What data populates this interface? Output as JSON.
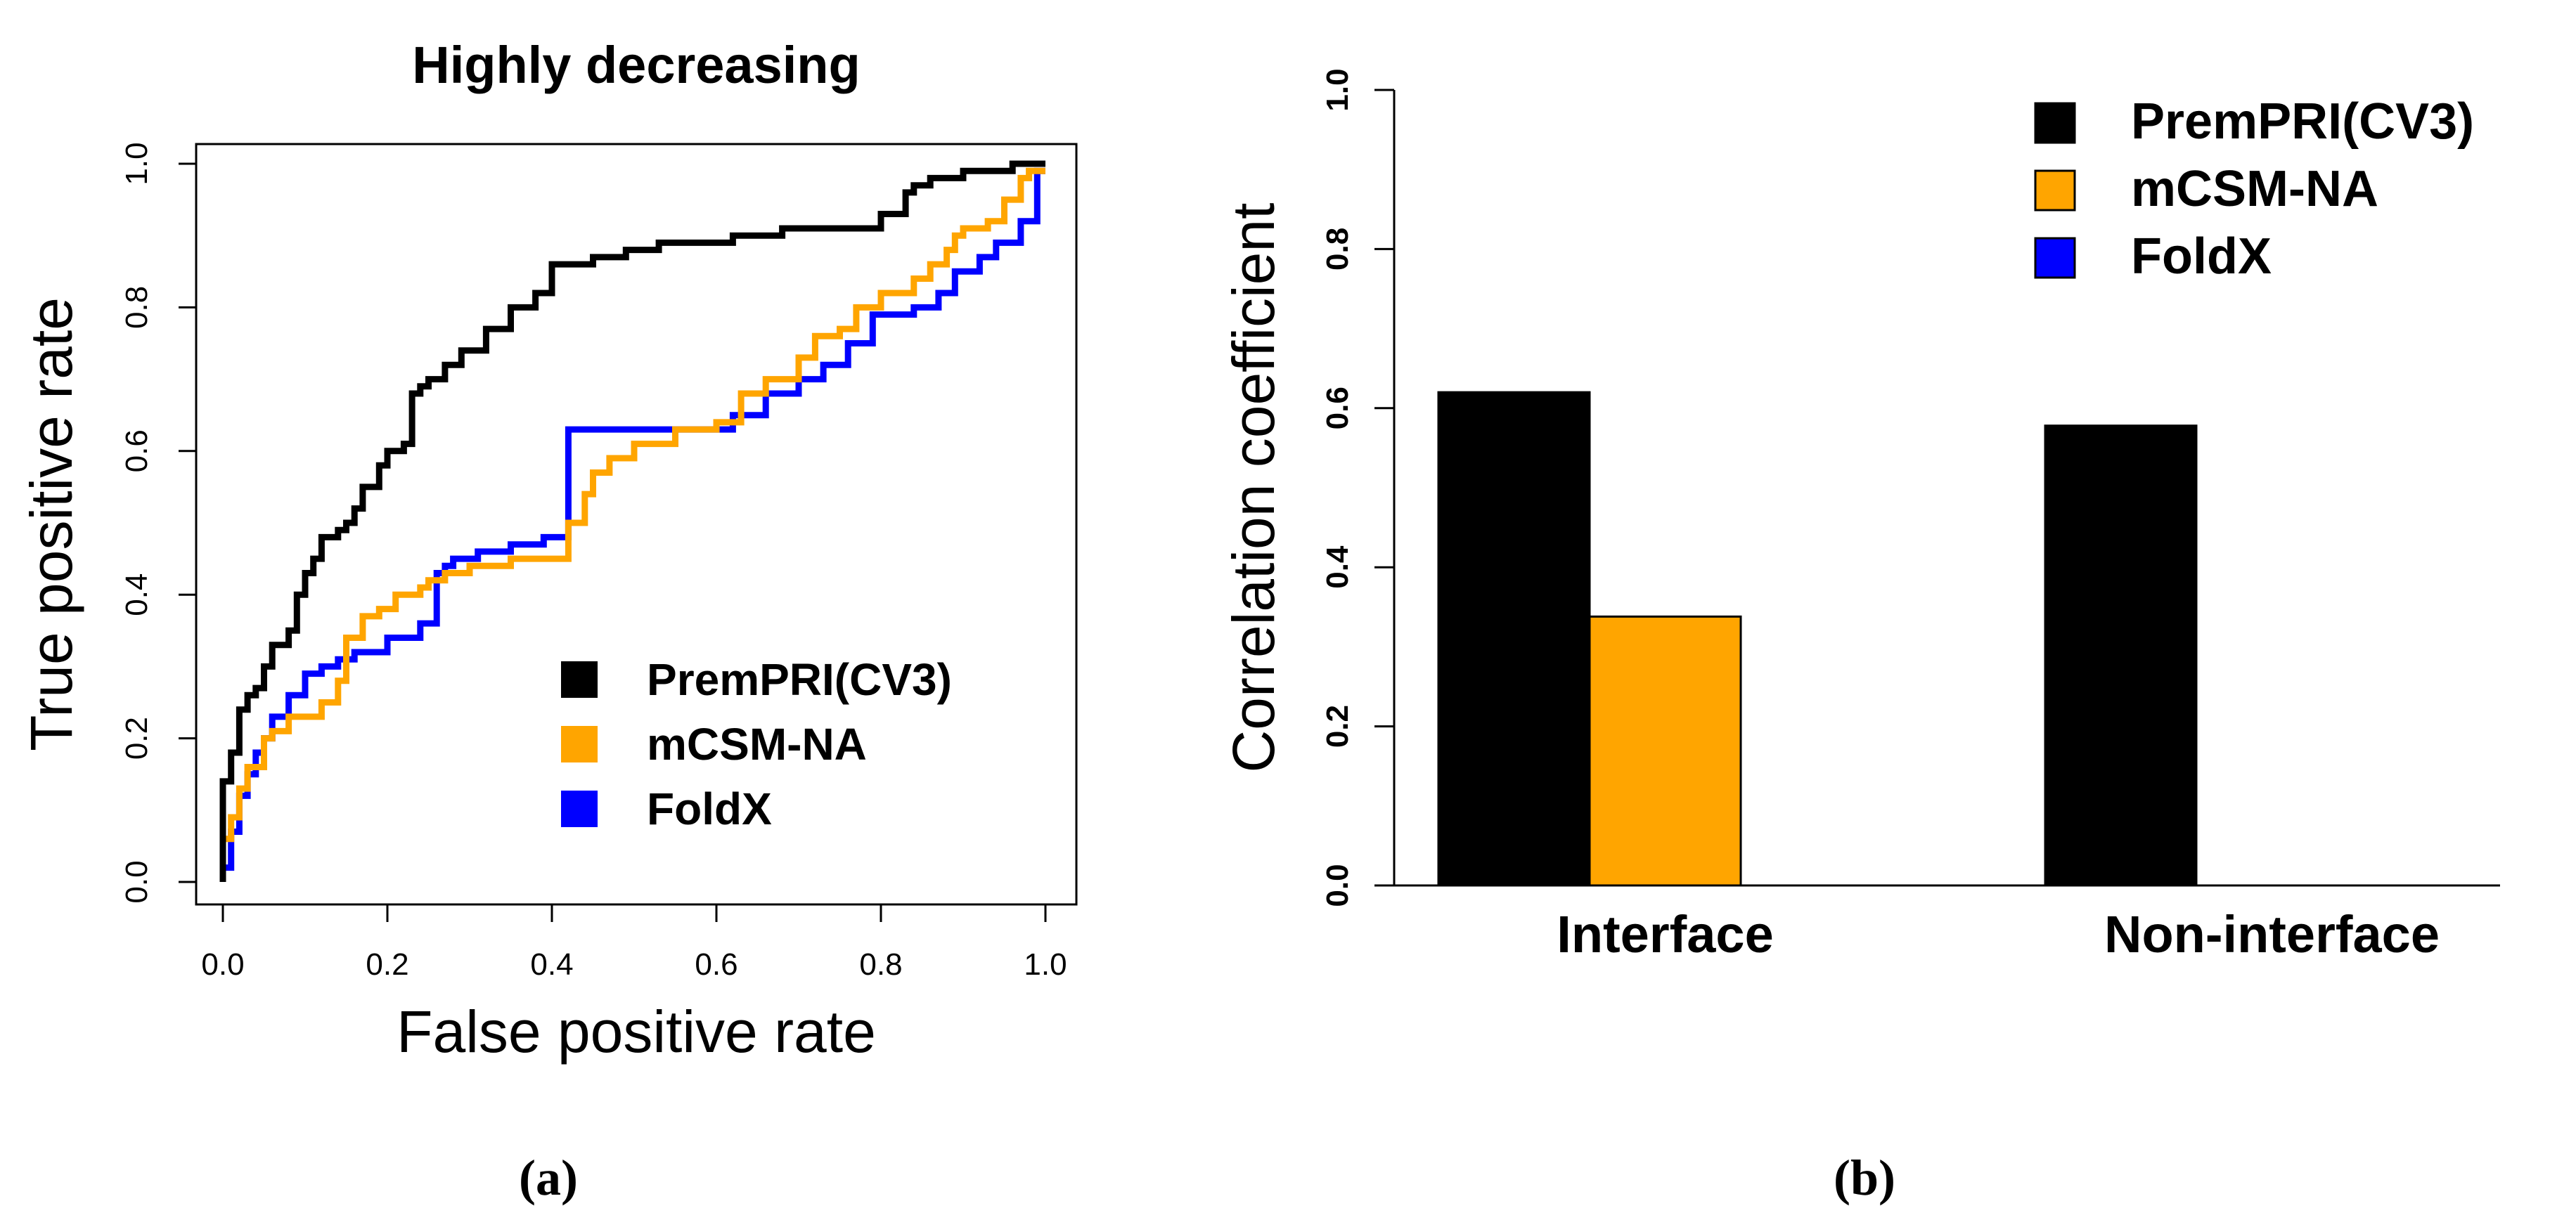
{
  "chart_data": [
    {
      "type": "line",
      "panel_label": "(a)",
      "title": "Highly decreasing",
      "xlabel": "False positive rate",
      "ylabel": "True positive rate",
      "xlim": [
        0,
        1
      ],
      "ylim": [
        0,
        1
      ],
      "x_ticks": [
        "0.0",
        "0.2",
        "0.4",
        "0.6",
        "0.8",
        "1.0"
      ],
      "y_ticks": [
        "0.0",
        "0.2",
        "0.4",
        "0.6",
        "0.8",
        "1.0"
      ],
      "grid": false,
      "legend_position": "bottom-right",
      "series": [
        {
          "name": "PremPRI(CV3)",
          "color": "#000000",
          "x": [
            0.0,
            0.0,
            0.01,
            0.01,
            0.02,
            0.03,
            0.04,
            0.05,
            0.06,
            0.08,
            0.09,
            0.1,
            0.11,
            0.12,
            0.14,
            0.15,
            0.16,
            0.17,
            0.19,
            0.2,
            0.22,
            0.23,
            0.24,
            0.25,
            0.27,
            0.29,
            0.32,
            0.35,
            0.38,
            0.4,
            0.45,
            0.49,
            0.53,
            0.58,
            0.62,
            0.68,
            0.72,
            0.8,
            0.83,
            0.84,
            0.86,
            0.9,
            0.96,
            1.0
          ],
          "y": [
            0.0,
            0.08,
            0.14,
            0.17,
            0.18,
            0.24,
            0.26,
            0.27,
            0.3,
            0.33,
            0.35,
            0.4,
            0.43,
            0.45,
            0.48,
            0.49,
            0.5,
            0.52,
            0.55,
            0.58,
            0.6,
            0.61,
            0.68,
            0.69,
            0.7,
            0.72,
            0.74,
            0.77,
            0.8,
            0.82,
            0.86,
            0.87,
            0.88,
            0.89,
            0.89,
            0.9,
            0.91,
            0.91,
            0.93,
            0.96,
            0.97,
            0.98,
            0.99,
            1.0
          ]
        },
        {
          "name": "mCSM-NA",
          "color": "#FFA500",
          "x": [
            0.0,
            0.01,
            0.02,
            0.03,
            0.05,
            0.06,
            0.08,
            0.12,
            0.14,
            0.15,
            0.17,
            0.19,
            0.21,
            0.24,
            0.25,
            0.27,
            0.3,
            0.35,
            0.42,
            0.44,
            0.45,
            0.47,
            0.5,
            0.55,
            0.6,
            0.63,
            0.66,
            0.7,
            0.72,
            0.75,
            0.77,
            0.8,
            0.84,
            0.86,
            0.88,
            0.89,
            0.9,
            0.93,
            0.95,
            0.97,
            0.98,
            1.0
          ],
          "y": [
            0.03,
            0.06,
            0.09,
            0.13,
            0.16,
            0.2,
            0.21,
            0.23,
            0.25,
            0.28,
            0.34,
            0.37,
            0.38,
            0.4,
            0.41,
            0.42,
            0.43,
            0.44,
            0.45,
            0.5,
            0.54,
            0.57,
            0.59,
            0.61,
            0.63,
            0.64,
            0.68,
            0.7,
            0.73,
            0.76,
            0.77,
            0.8,
            0.82,
            0.84,
            0.86,
            0.88,
            0.9,
            0.91,
            0.92,
            0.95,
            0.98,
            0.99
          ]
        },
        {
          "name": "FoldX",
          "color": "#0000FF",
          "x": [
            0.0,
            0.01,
            0.02,
            0.03,
            0.04,
            0.05,
            0.06,
            0.08,
            0.1,
            0.12,
            0.14,
            0.16,
            0.2,
            0.24,
            0.26,
            0.27,
            0.28,
            0.31,
            0.35,
            0.39,
            0.42,
            0.62,
            0.66,
            0.7,
            0.73,
            0.76,
            0.79,
            0.84,
            0.87,
            0.89,
            0.92,
            0.94,
            0.97,
            0.99,
            1.0
          ],
          "y": [
            0.0,
            0.02,
            0.07,
            0.12,
            0.15,
            0.18,
            0.2,
            0.23,
            0.26,
            0.29,
            0.3,
            0.31,
            0.32,
            0.34,
            0.36,
            0.43,
            0.44,
            0.45,
            0.46,
            0.47,
            0.48,
            0.63,
            0.65,
            0.68,
            0.7,
            0.72,
            0.75,
            0.79,
            0.8,
            0.82,
            0.85,
            0.87,
            0.89,
            0.92,
            0.99
          ]
        }
      ]
    },
    {
      "type": "bar",
      "panel_label": "(b)",
      "title": "",
      "xlabel": "",
      "ylabel": "Correlation coefficient",
      "ylim": [
        0,
        1
      ],
      "y_ticks": [
        "0.0",
        "0.2",
        "0.4",
        "0.6",
        "0.8",
        "1.0"
      ],
      "grid": false,
      "legend_position": "top-right",
      "categories": [
        "Interface",
        "Non-interface"
      ],
      "series": [
        {
          "name": "PremPRI(CV3)",
          "color": "#000000",
          "values": [
            0.62,
            0.578
          ]
        },
        {
          "name": "mCSM-NA",
          "color": "#FFA500",
          "values": [
            0.338,
            0
          ]
        },
        {
          "name": "FoldX",
          "color": "#0000FF",
          "values": [
            0,
            0
          ]
        }
      ]
    }
  ]
}
